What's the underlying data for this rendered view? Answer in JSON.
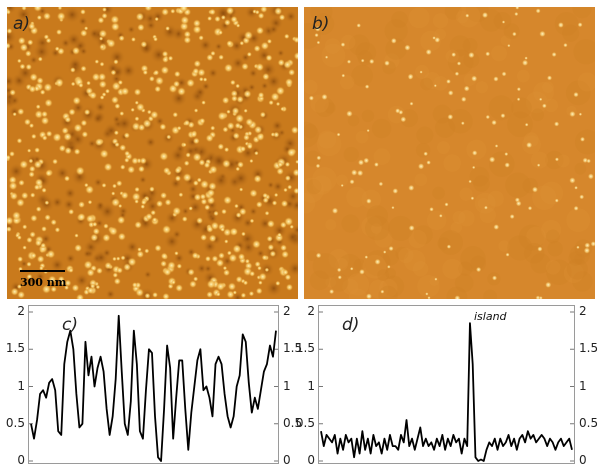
{
  "panels": {
    "a": {
      "label": "a)",
      "scale_bar_label": "300 nm",
      "colors": {
        "background": "#c97a1c",
        "bright": "#ffe79a",
        "dark": "#9e5810"
      }
    },
    "b": {
      "label": "b)",
      "colors": {
        "background": "#d6872c",
        "bright": "#fff2b8"
      }
    },
    "c": {
      "label": "c)"
    },
    "d": {
      "label": "d)",
      "annotation": "island"
    }
  },
  "chart_data": [
    {
      "type": "line",
      "panel": "c",
      "ylim": [
        0,
        2
      ],
      "yticks": [
        0,
        0.5,
        1,
        1.5,
        2
      ],
      "ytick_labels": [
        "0",
        "0.5",
        "1",
        "1.5",
        "2"
      ],
      "line_color": "#000000",
      "y": [
        0.5,
        0.3,
        0.55,
        0.9,
        0.95,
        0.85,
        1.05,
        1.1,
        0.95,
        0.4,
        0.35,
        1.3,
        1.6,
        1.75,
        1.5,
        0.9,
        0.45,
        0.5,
        1.6,
        1.15,
        1.4,
        1.0,
        1.25,
        1.4,
        1.2,
        0.7,
        0.35,
        0.6,
        1.1,
        1.95,
        1.2,
        0.5,
        0.35,
        0.8,
        1.75,
        1.3,
        0.4,
        0.3,
        0.95,
        1.5,
        1.45,
        0.6,
        0.05,
        0.0,
        0.7,
        1.55,
        1.25,
        0.3,
        0.85,
        1.35,
        1.35,
        0.7,
        0.15,
        0.65,
        1.0,
        1.35,
        1.5,
        0.95,
        1.0,
        0.85,
        0.6,
        1.3,
        1.4,
        1.3,
        0.9,
        0.6,
        0.45,
        0.6,
        1.0,
        1.15,
        1.7,
        1.6,
        1.05,
        0.65,
        0.85,
        0.7,
        0.95,
        1.2,
        1.3,
        1.55,
        1.4,
        1.75
      ]
    },
    {
      "type": "line",
      "panel": "d",
      "ylim": [
        0,
        2
      ],
      "yticks": [
        0,
        0.5,
        1,
        1.5,
        2
      ],
      "ytick_labels": [
        "0",
        "0.5",
        "1",
        "1.5",
        "2"
      ],
      "line_color": "#000000",
      "y": [
        0.4,
        0.2,
        0.35,
        0.3,
        0.25,
        0.35,
        0.1,
        0.3,
        0.15,
        0.35,
        0.25,
        0.3,
        0.05,
        0.3,
        0.1,
        0.4,
        0.15,
        0.3,
        0.1,
        0.35,
        0.2,
        0.25,
        0.1,
        0.3,
        0.15,
        0.35,
        0.2,
        0.2,
        0.15,
        0.35,
        0.25,
        0.55,
        0.2,
        0.3,
        0.15,
        0.3,
        0.45,
        0.2,
        0.3,
        0.2,
        0.25,
        0.15,
        0.3,
        0.2,
        0.35,
        0.15,
        0.3,
        0.2,
        0.35,
        0.25,
        0.3,
        0.1,
        0.3,
        0.2,
        1.85,
        1.3,
        0.05,
        0.0,
        0.02,
        0.0,
        0.15,
        0.25,
        0.2,
        0.3,
        0.15,
        0.3,
        0.2,
        0.25,
        0.35,
        0.2,
        0.3,
        0.15,
        0.3,
        0.35,
        0.25,
        0.4,
        0.3,
        0.35,
        0.25,
        0.3,
        0.35,
        0.3,
        0.2,
        0.3,
        0.25,
        0.15,
        0.25,
        0.3,
        0.2,
        0.25,
        0.3,
        0.15
      ]
    }
  ]
}
